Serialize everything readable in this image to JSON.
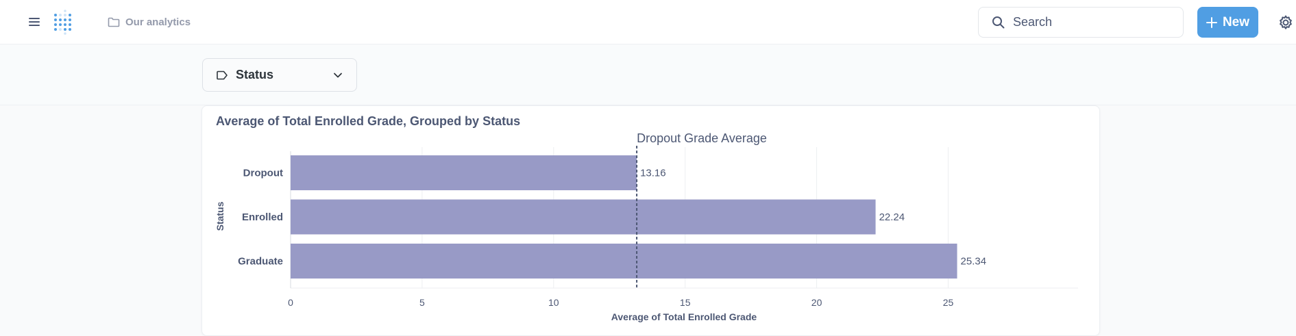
{
  "nav": {
    "breadcrumb": "Our analytics",
    "search_placeholder": "Search",
    "new_label": "New"
  },
  "filter": {
    "label": "Status"
  },
  "colors": {
    "accent": "#509ee3",
    "bar": "#989ac6",
    "text": "#4c5773"
  },
  "chart_data": {
    "type": "bar",
    "orientation": "horizontal",
    "title": "Average of Total Enrolled Grade, Grouped by Status",
    "xlabel": "Average of Total Enrolled Grade",
    "ylabel": "Status",
    "categories": [
      "Dropout",
      "Enrolled",
      "Graduate"
    ],
    "values": [
      13.16,
      22.24,
      25.34
    ],
    "value_labels": [
      "13.16",
      "22.24",
      "25.34"
    ],
    "xlim": [
      0,
      26.5
    ],
    "xticks": [
      0,
      5,
      10,
      15,
      20,
      25
    ],
    "grid": true,
    "goal_line": {
      "label": "Dropout Grade Average",
      "value": 13.16
    }
  }
}
